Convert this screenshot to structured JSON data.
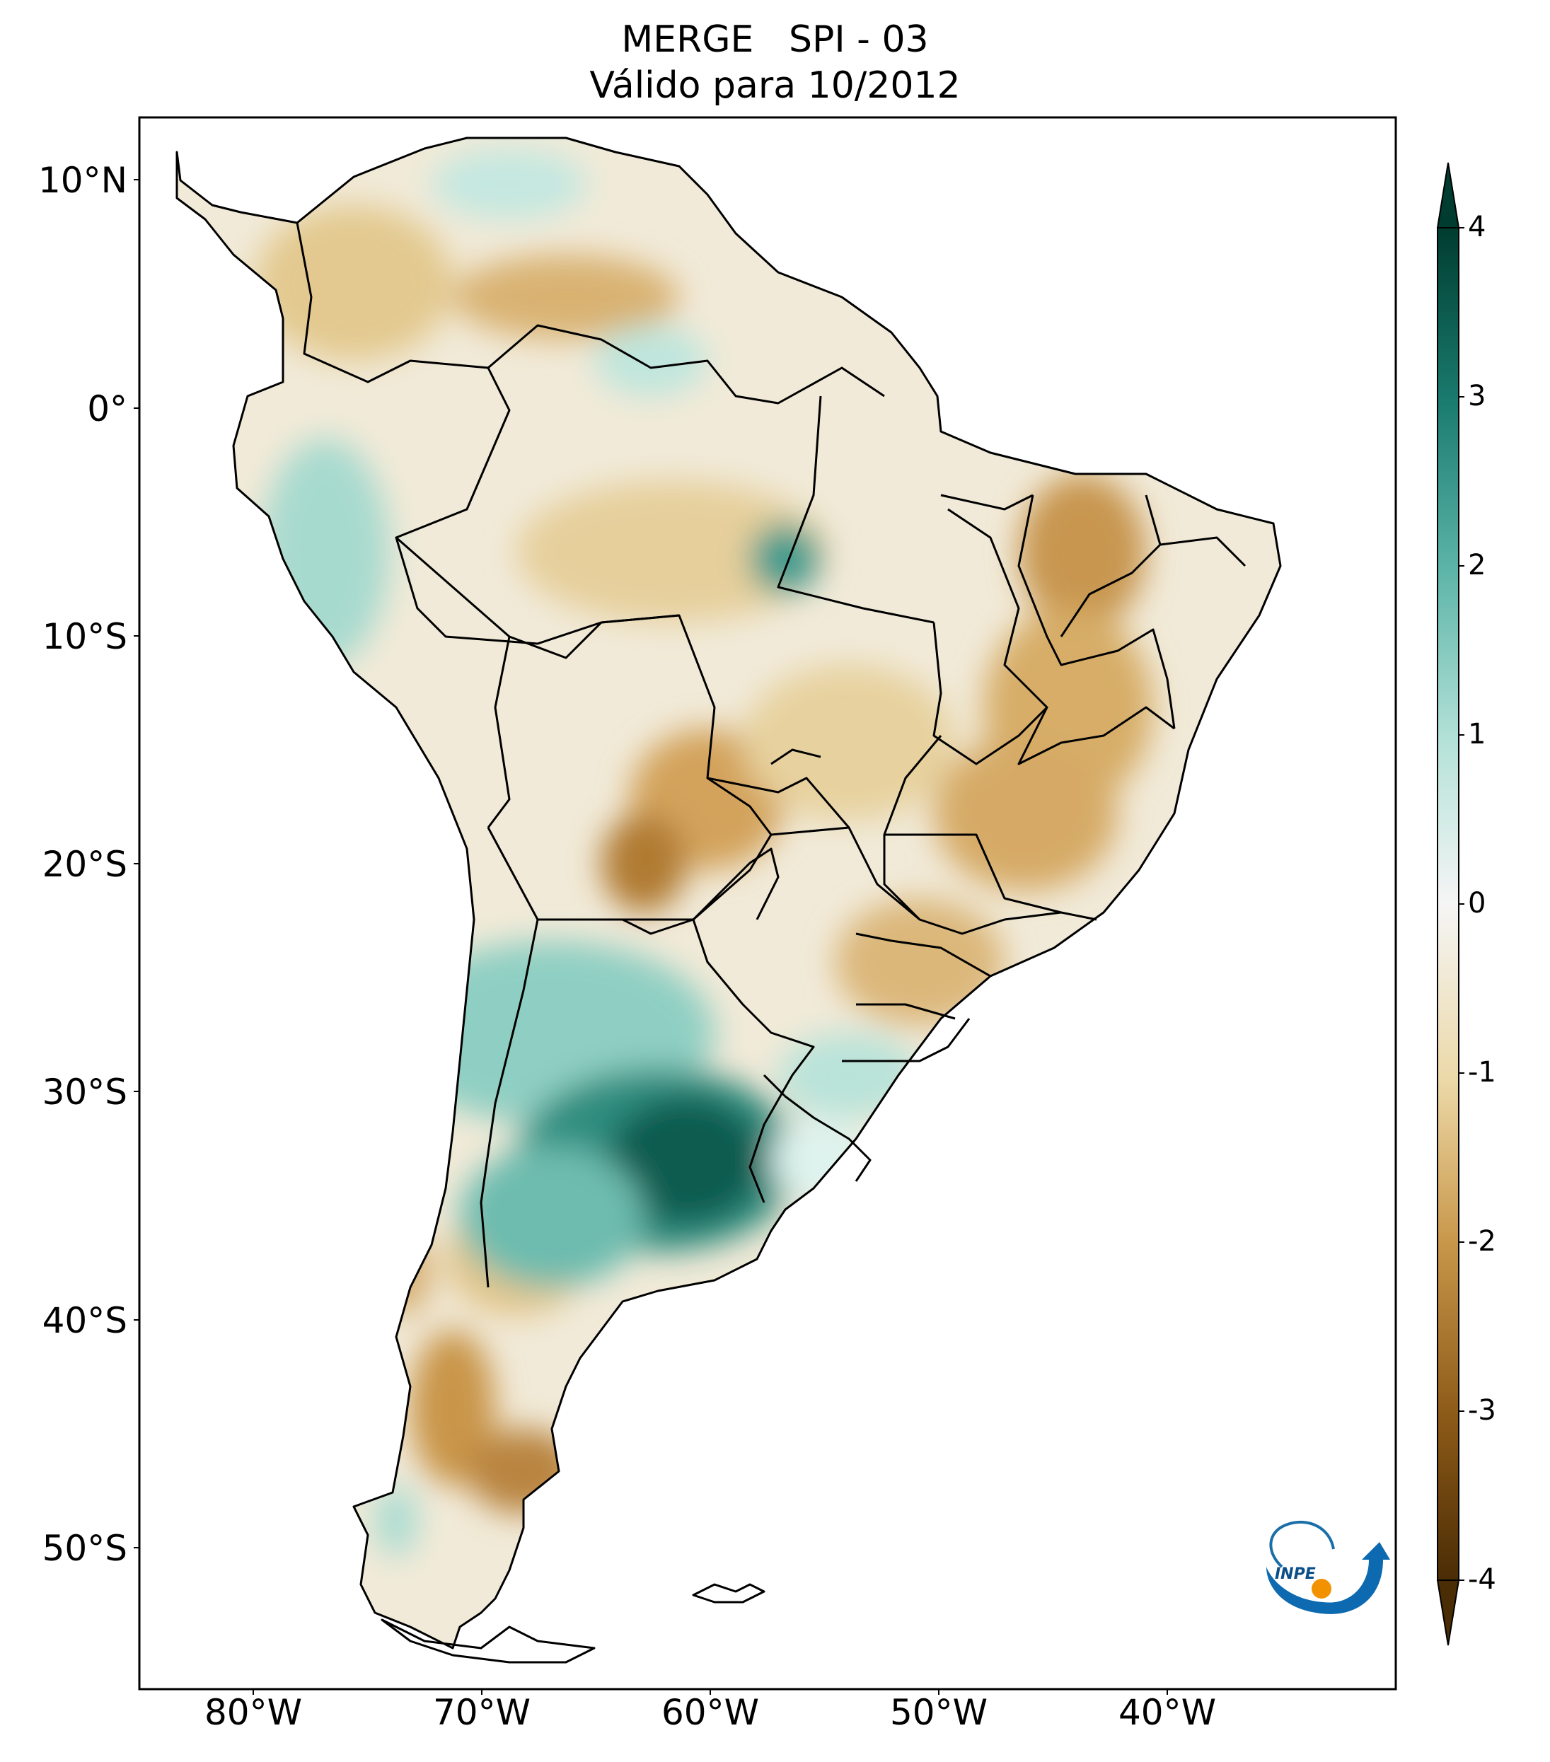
{
  "title": {
    "line1": "MERGE   SPI - 03",
    "line2": "Válido para 10/2012"
  },
  "axes": {
    "lat_ticks": [
      "10°N",
      "0°",
      "10°S",
      "20°S",
      "30°S",
      "40°S",
      "50°S"
    ],
    "lon_ticks": [
      "80°W",
      "70°W",
      "60°W",
      "50°W",
      "40°W"
    ],
    "lon_range": [
      -85,
      -30
    ],
    "lat_range": [
      -56,
      13
    ]
  },
  "colorbar": {
    "ticks": [
      "4",
      "3",
      "2",
      "1",
      "0",
      "-1",
      "-2",
      "-3",
      "-4"
    ],
    "range": [
      -4,
      4
    ],
    "colors": {
      "dry_extreme": "#4a2c05",
      "dry_strong": "#8c5a17",
      "dry_moderate": "#c8974a",
      "dry_light": "#ecd9a8",
      "neutral": "#f5f5f5",
      "wet_light": "#b4e2d8",
      "wet_moderate": "#5bb3a7",
      "wet_strong": "#1a7c6f",
      "wet_extreme": "#003c30"
    }
  },
  "logo": {
    "text": "INPE"
  }
}
